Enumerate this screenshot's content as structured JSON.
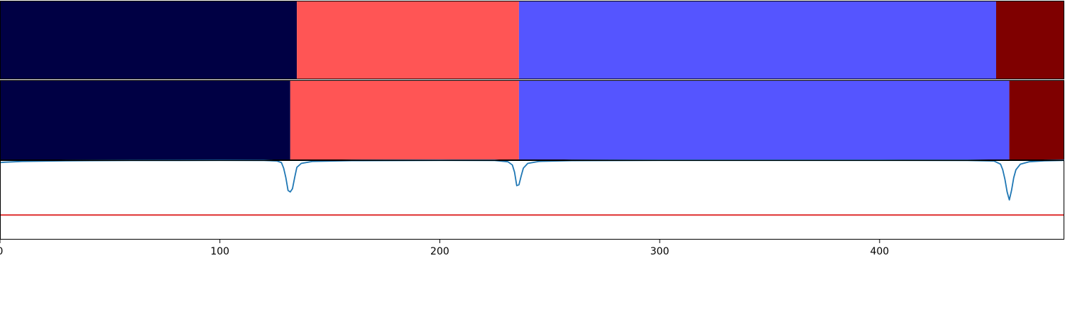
{
  "chart_data": [
    {
      "type": "segments",
      "name_shown": "",
      "segments": [
        {
          "start": 0,
          "end": 135,
          "color": "#000044"
        },
        {
          "start": 135,
          "end": 236,
          "color": "#ff5555"
        },
        {
          "start": 236,
          "end": 453,
          "color": "#5555ff"
        },
        {
          "start": 453,
          "end": 484,
          "color": "#7f0000"
        }
      ]
    },
    {
      "type": "segments",
      "name_shown": "",
      "segments": [
        {
          "start": 0,
          "end": 132,
          "color": "#000044"
        },
        {
          "start": 132,
          "end": 236,
          "color": "#ff5555"
        },
        {
          "start": 236,
          "end": 459,
          "color": "#5555ff"
        },
        {
          "start": 459,
          "end": 484,
          "color": "#7f0000"
        }
      ]
    },
    {
      "type": "line",
      "xlim": [
        0,
        484
      ],
      "ylim": [
        0,
        1
      ],
      "series": [
        {
          "color": "#1f77b4",
          "x": [
            0,
            2,
            10,
            30,
            60,
            100,
            120,
            126,
            128,
            129,
            130,
            131,
            132,
            133,
            134,
            135,
            137,
            142,
            160,
            200,
            225,
            231,
            233,
            234,
            235,
            236,
            237,
            238,
            240,
            245,
            260,
            300,
            350,
            400,
            440,
            452,
            455,
            456,
            457,
            458,
            459,
            460,
            461,
            462,
            464,
            468,
            475,
            484
          ],
          "y": [
            0.97,
            0.975,
            0.985,
            0.993,
            0.996,
            0.998,
            0.997,
            0.99,
            0.97,
            0.9,
            0.78,
            0.62,
            0.6,
            0.64,
            0.78,
            0.91,
            0.96,
            0.985,
            0.995,
            0.998,
            0.997,
            0.98,
            0.94,
            0.85,
            0.68,
            0.69,
            0.8,
            0.9,
            0.96,
            0.985,
            0.995,
            0.998,
            0.998,
            0.998,
            0.997,
            0.99,
            0.95,
            0.88,
            0.76,
            0.6,
            0.5,
            0.62,
            0.78,
            0.88,
            0.95,
            0.98,
            0.993,
            0.998
          ]
        },
        {
          "color": "#dd2222",
          "x": [
            0,
            484
          ],
          "y": [
            0.31,
            0.31
          ]
        }
      ]
    }
  ],
  "x_axis": {
    "ticks": [
      0,
      100,
      200,
      300,
      400
    ],
    "tick_labels": [
      "0",
      "100",
      "200",
      "300",
      "400"
    ]
  }
}
